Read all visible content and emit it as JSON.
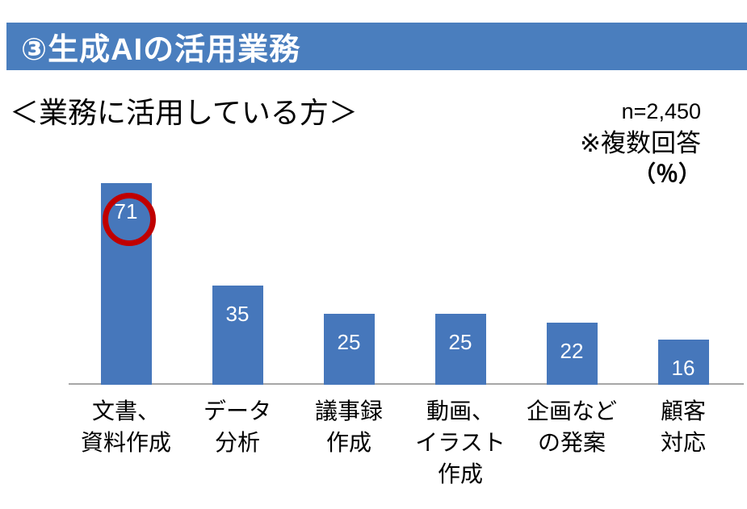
{
  "header": {
    "title": "③生成AIの活用業務",
    "bg_color": "#4A7EBE",
    "text_color": "#ffffff"
  },
  "chart_data": {
    "type": "bar",
    "title": "③生成AIの活用業務",
    "subtitle": "＜業務に活用している方＞",
    "annotations": {
      "sample_size": "n=2,450",
      "note": "※複数回答",
      "unit": "（％）"
    },
    "categories": [
      "文書、資料作成",
      "データ分析",
      "議事録作成",
      "動画、イラスト作成",
      "企画などの発案",
      "顧客対応"
    ],
    "categories_wrapped": [
      [
        "文書、",
        "資料作成"
      ],
      [
        "データ",
        "分析"
      ],
      [
        "議事録",
        "作成"
      ],
      [
        "動画、",
        "イラスト",
        "作成"
      ],
      [
        "企画など",
        "の発案"
      ],
      [
        "顧客",
        "対応"
      ]
    ],
    "values": [
      71,
      35,
      25,
      25,
      22,
      16
    ],
    "xlabel": "",
    "ylabel": "",
    "ylim": [
      0,
      75
    ],
    "grid": false,
    "legend": false,
    "data_label_position": "inside_end",
    "bar_color": "#4677BB",
    "value_label_color": "#ffffff",
    "axis_color": "#A6A6A6",
    "highlight": {
      "index": 0,
      "shape": "circle",
      "color": "#C00000"
    }
  }
}
